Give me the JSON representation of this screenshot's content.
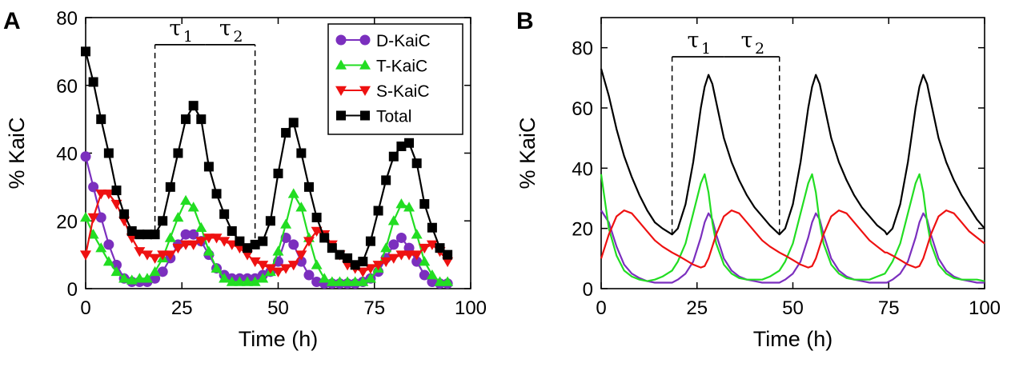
{
  "panels": {
    "a": {
      "letter": "A"
    },
    "b": {
      "letter": "B"
    }
  },
  "colors": {
    "D-KaiC": "#7b2fbe",
    "T-KaiC": "#22dd22",
    "S-KaiC": "#ee1111",
    "Total": "#000000"
  },
  "chart_data": [
    {
      "type": "line",
      "panel": "A",
      "xlabel": "Time (h)",
      "ylabel": "% KaiC",
      "xlim": [
        0,
        100
      ],
      "ylim": [
        0,
        80
      ],
      "xticks": [
        0,
        25,
        50,
        75,
        100
      ],
      "yticks": [
        0,
        20,
        40,
        60,
        80
      ],
      "legend": "top-right",
      "annotations": {
        "tau1": {
          "symbol": "τ",
          "sub": "1",
          "from": 18,
          "to": 31,
          "y": 72
        },
        "tau2": {
          "symbol": "τ",
          "sub": "2",
          "from": 31,
          "to": 44,
          "y": 72
        },
        "dashed_lines": [
          {
            "x": 18,
            "y_from": 17,
            "y_to": 72
          },
          {
            "x": 44,
            "y_from": 12,
            "y_to": 72
          }
        ]
      },
      "x": [
        0,
        2,
        4,
        6,
        8,
        10,
        12,
        14,
        16,
        18,
        20,
        22,
        24,
        26,
        28,
        30,
        32,
        34,
        36,
        38,
        40,
        42,
        44,
        46,
        48,
        50,
        52,
        54,
        56,
        58,
        60,
        62,
        64,
        66,
        68,
        70,
        72,
        74,
        76,
        78,
        80,
        82,
        84,
        86,
        88,
        90,
        92,
        94
      ],
      "series": [
        {
          "name": "D-KaiC",
          "marker": "circle",
          "values": [
            39,
            30,
            21,
            13,
            7,
            3,
            2,
            2,
            2,
            3,
            5,
            9,
            13,
            16,
            16,
            14,
            10,
            6,
            4,
            3,
            3,
            3,
            3,
            4,
            5,
            8,
            15,
            13,
            8,
            4,
            2,
            1.5,
            1.5,
            1.5,
            1.5,
            1.5,
            2,
            3,
            5,
            9,
            13,
            15,
            12,
            8,
            4,
            2,
            1.5,
            1.5
          ]
        },
        {
          "name": "T-KaiC",
          "marker": "triangle-up",
          "values": [
            21,
            16,
            12,
            8,
            5,
            3,
            2.5,
            3,
            3,
            5,
            9,
            15,
            21,
            26,
            24,
            18,
            11,
            6,
            3,
            2,
            2,
            2,
            2,
            3,
            5,
            11,
            19,
            28,
            24,
            15,
            7,
            3,
            2,
            2,
            2,
            2,
            2,
            3,
            6,
            12,
            20,
            25,
            24,
            16,
            8,
            4,
            2,
            2
          ]
        },
        {
          "name": "S-KaiC",
          "marker": "triangle-down",
          "values": [
            10,
            21,
            28,
            28,
            25,
            20,
            15,
            11,
            10,
            9,
            10,
            10,
            12,
            13,
            13,
            14,
            15,
            15,
            14,
            13,
            12,
            10,
            8,
            7,
            6,
            5,
            6,
            7,
            10,
            14,
            17,
            16,
            13,
            10,
            7,
            6,
            5,
            6,
            7,
            8,
            9,
            10,
            10,
            10,
            12,
            13,
            11,
            8
          ]
        },
        {
          "name": "Total",
          "marker": "square",
          "values": [
            70,
            61,
            50,
            40,
            29,
            22,
            17,
            16,
            16,
            16,
            20,
            30,
            40,
            50,
            54,
            50,
            36,
            28,
            22,
            17,
            14,
            12,
            13,
            14,
            20,
            34,
            46,
            49,
            40,
            30,
            21,
            15,
            12,
            10,
            9,
            7,
            8,
            14,
            23,
            32,
            39,
            42,
            43,
            37,
            25,
            18,
            12,
            10
          ]
        }
      ]
    },
    {
      "type": "line",
      "panel": "B",
      "xlabel": "Time (h)",
      "ylabel": "% KaiC",
      "xlim": [
        0,
        100
      ],
      "ylim": [
        0,
        90
      ],
      "xticks": [
        0,
        25,
        50,
        75,
        100
      ],
      "yticks": [
        0,
        20,
        40,
        60,
        80
      ],
      "annotations": {
        "tau1": {
          "symbol": "τ",
          "sub": "1",
          "from": 18.5,
          "to": 32,
          "y": 77
        },
        "tau2": {
          "symbol": "τ",
          "sub": "2",
          "from": 32,
          "to": 46.5,
          "y": 77
        },
        "dashed_lines": [
          {
            "x": 18.5,
            "y_from": 18,
            "y_to": 77
          },
          {
            "x": 46.5,
            "y_from": 18,
            "y_to": 77
          }
        ]
      },
      "x": [
        0,
        2,
        4,
        6,
        8,
        10,
        12,
        14,
        16,
        18.5,
        20,
        22,
        24,
        26,
        27,
        28,
        29,
        30,
        32,
        34,
        36,
        38,
        40,
        42,
        44,
        46.5,
        48,
        50,
        52,
        54,
        55,
        56,
        57,
        58,
        60,
        62,
        64,
        66,
        68,
        70,
        72,
        74,
        74.5,
        76,
        78,
        80,
        82,
        83,
        84,
        85,
        86,
        88,
        90,
        92,
        94,
        96,
        98,
        100
      ],
      "series": [
        {
          "name": "D-KaiC",
          "color": "#7b2fbe",
          "values": [
            26,
            22,
            14,
            8,
            5,
            3.5,
            2.5,
            2,
            2,
            2,
            3,
            5,
            9,
            17,
            22,
            25,
            23,
            18,
            10,
            6,
            4,
            3,
            2.5,
            2,
            2,
            2,
            3,
            5,
            9,
            17,
            22,
            25,
            23,
            18,
            10,
            6,
            4,
            3,
            2.5,
            2,
            2,
            2,
            2,
            3,
            5,
            9,
            17,
            22,
            25,
            23,
            18,
            10,
            6,
            4,
            3,
            2.5,
            2,
            2
          ]
        },
        {
          "name": "T-KaiC",
          "color": "#22dd22",
          "values": [
            38,
            20,
            11,
            6,
            4,
            3,
            2.5,
            3,
            4,
            6,
            9,
            15,
            25,
            35,
            38,
            32,
            22,
            15,
            8,
            5,
            3.5,
            3,
            3,
            3,
            4,
            6,
            9,
            15,
            25,
            35,
            38,
            32,
            22,
            15,
            8,
            5,
            3.5,
            3,
            3,
            3,
            4,
            5,
            6,
            9,
            15,
            25,
            35,
            38,
            32,
            22,
            15,
            8,
            5,
            3.5,
            3,
            3,
            3,
            2.5
          ]
        },
        {
          "name": "S-KaiC",
          "color": "#ee1111",
          "values": [
            10,
            18,
            24,
            26,
            25,
            22,
            19,
            16,
            14,
            12,
            11,
            9.5,
            8,
            7,
            7.5,
            10,
            14,
            18,
            24,
            26,
            25,
            22,
            19,
            16,
            14,
            12,
            11,
            9.5,
            8,
            7,
            7.5,
            10,
            14,
            18,
            24,
            26,
            25,
            22,
            19,
            16,
            14,
            12,
            12,
            11,
            9.5,
            8,
            7,
            7.5,
            10,
            14,
            18,
            24,
            26,
            25,
            22,
            19,
            17,
            15
          ]
        },
        {
          "name": "Total",
          "color": "#000000",
          "values": [
            73,
            64,
            53,
            44,
            37,
            31,
            26,
            22,
            20,
            18,
            20,
            28,
            42,
            60,
            67,
            71,
            68,
            62,
            50,
            42,
            36,
            31,
            27,
            24,
            21,
            18,
            20,
            28,
            42,
            60,
            67,
            71,
            68,
            62,
            50,
            42,
            36,
            31,
            27,
            24,
            21,
            19,
            18,
            20,
            28,
            42,
            60,
            67,
            71,
            68,
            62,
            50,
            42,
            36,
            31,
            27,
            23,
            20
          ]
        }
      ]
    }
  ]
}
